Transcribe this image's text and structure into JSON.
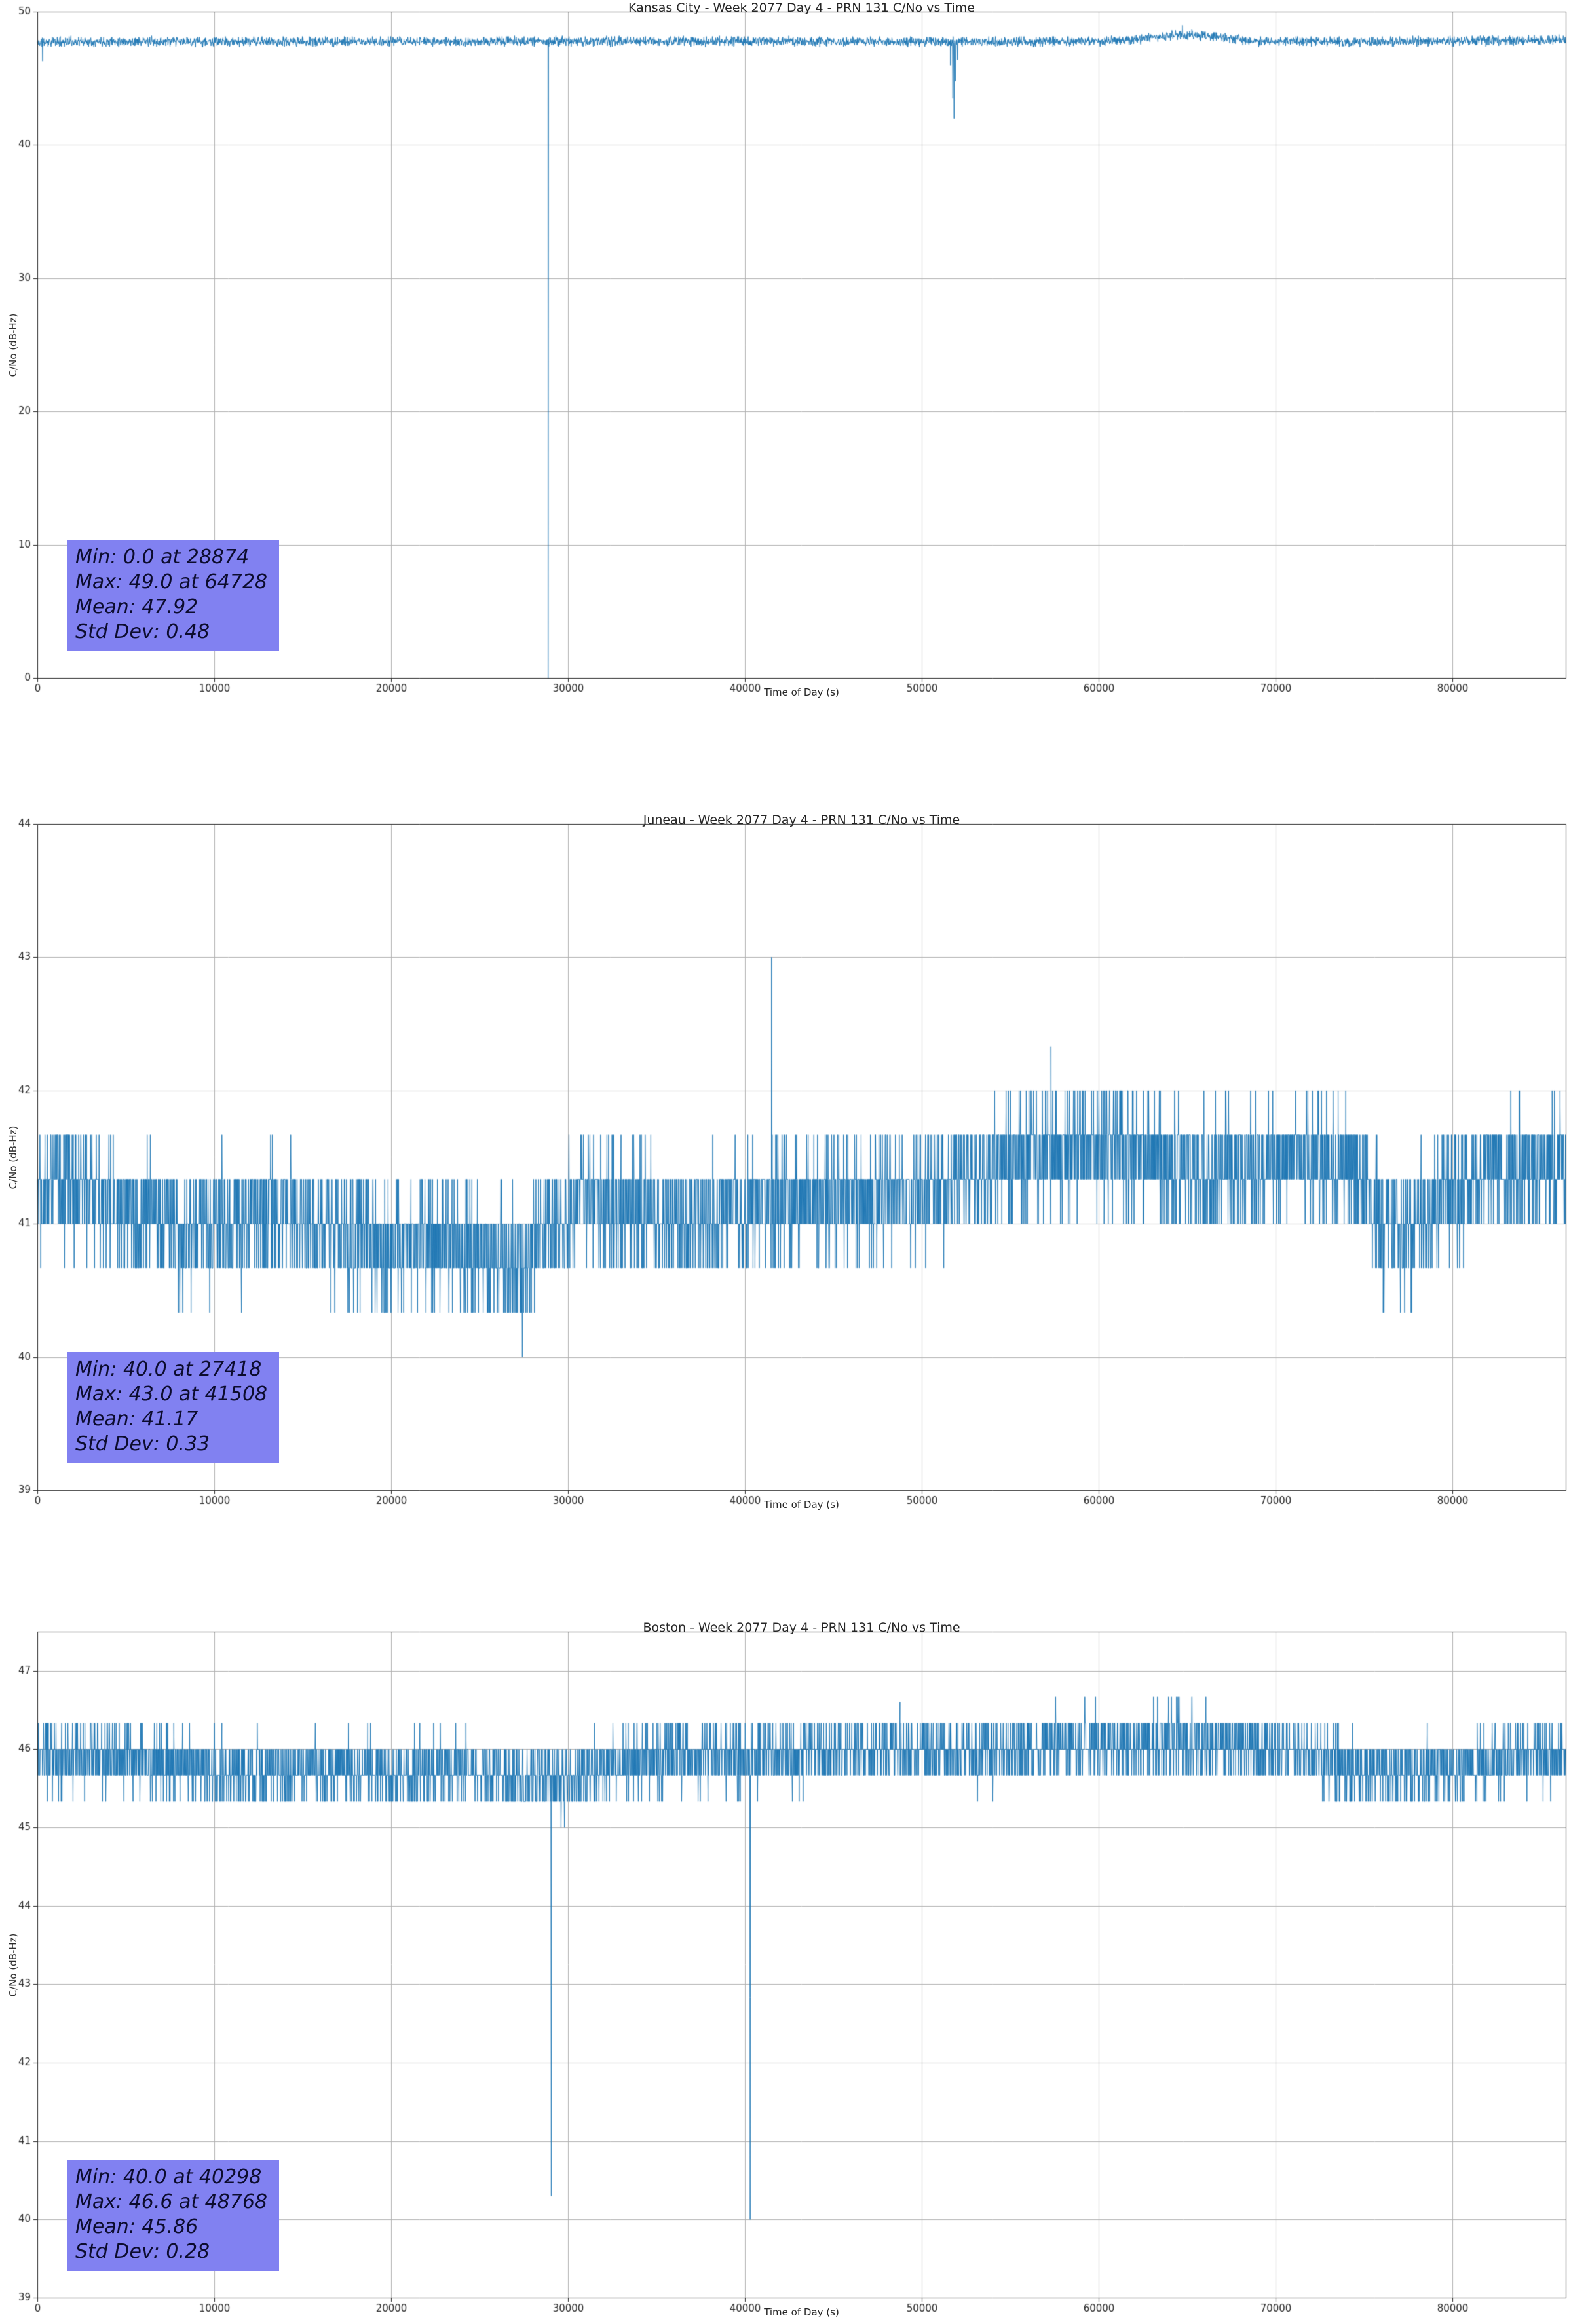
{
  "page": {
    "background": "#ffffff",
    "accent_line_color": "#1f77b4",
    "stats_box_color": "#8181f1",
    "grid_color": "#b0b0b0"
  },
  "chart_data": [
    {
      "type": "line",
      "title": "Kansas City - Week 2077 Day 4 - PRN 131 C/No vs Time",
      "xlabel": "Time of Day (s)",
      "ylabel": "C/No (dB-Hz)",
      "xlim": [
        0,
        86400
      ],
      "ylim": [
        0,
        50
      ],
      "xticks": [
        0,
        10000,
        20000,
        30000,
        40000,
        50000,
        60000,
        70000,
        80000
      ],
      "yticks": [
        0,
        10,
        20,
        30,
        40,
        50
      ],
      "grid": true,
      "legend": null,
      "line_color": "#1f77b4",
      "stats": {
        "min": "Min: 0.0 at 28874",
        "max": "Max: 49.0 at 64728",
        "mean": "Mean: 47.92",
        "std": "Std Dev: 0.48"
      },
      "stats_values": {
        "min": 0.0,
        "min_time": 28874,
        "max": 49.0,
        "max_time": 64728,
        "mean": 47.92,
        "std_dev": 0.48
      },
      "series_model": {
        "seed": 11,
        "n": 5000,
        "quantize": 0.05,
        "noise": 0.22,
        "base_points": [
          [
            0,
            47.7
          ],
          [
            1500,
            47.78
          ],
          [
            12000,
            47.75
          ],
          [
            28000,
            47.78
          ],
          [
            40000,
            47.78
          ],
          [
            50000,
            47.75
          ],
          [
            60000,
            47.8
          ],
          [
            62000,
            47.9
          ],
          [
            64700,
            48.3
          ],
          [
            66500,
            48.15
          ],
          [
            68500,
            47.8
          ],
          [
            76000,
            47.75
          ],
          [
            86400,
            47.9
          ]
        ],
        "events": [
          {
            "t": 300,
            "v": 46.3
          },
          {
            "t": 28874,
            "v": 0.0
          },
          {
            "t": 51620,
            "v": 46.0
          },
          {
            "t": 51750,
            "v": 43.5
          },
          {
            "t": 51820,
            "v": 42.0
          },
          {
            "t": 51900,
            "v": 44.8
          },
          {
            "t": 52020,
            "v": 46.4
          },
          {
            "t": 64728,
            "v": 49.0
          }
        ]
      }
    },
    {
      "type": "line",
      "title": "Juneau - Week 2077 Day 4 - PRN 131 C/No vs Time",
      "xlabel": "Time of Day (s)",
      "ylabel": "C/No (dB-Hz)",
      "xlim": [
        0,
        86400
      ],
      "ylim": [
        39,
        44
      ],
      "xticks": [
        0,
        10000,
        20000,
        30000,
        40000,
        50000,
        60000,
        70000,
        80000
      ],
      "yticks": [
        39,
        40,
        41,
        42,
        43,
        44
      ],
      "grid": true,
      "legend": null,
      "line_color": "#1f77b4",
      "stats": {
        "min": "Min: 40.0 at 27418",
        "max": "Max: 43.0 at 41508",
        "mean": "Mean: 41.17",
        "std": "Std Dev: 0.33"
      },
      "stats_values": {
        "min": 40.0,
        "min_time": 27418,
        "max": 43.0,
        "max_time": 41508,
        "mean": 41.17,
        "std_dev": 0.33
      },
      "series_model": {
        "seed": 22,
        "n": 5400,
        "quantize": 0.33333,
        "noise": 0.28,
        "base_points": [
          [
            0,
            41.35
          ],
          [
            2500,
            41.3
          ],
          [
            5000,
            41.05
          ],
          [
            9000,
            40.95
          ],
          [
            13000,
            41.05
          ],
          [
            16000,
            41.0
          ],
          [
            19000,
            40.85
          ],
          [
            23000,
            40.85
          ],
          [
            26000,
            40.75
          ],
          [
            27418,
            40.7
          ],
          [
            29000,
            41.0
          ],
          [
            31000,
            41.2
          ],
          [
            34000,
            41.1
          ],
          [
            37000,
            41.0
          ],
          [
            39000,
            41.05
          ],
          [
            41508,
            41.2
          ],
          [
            44000,
            41.2
          ],
          [
            47000,
            41.2
          ],
          [
            50000,
            41.25
          ],
          [
            53000,
            41.35
          ],
          [
            55000,
            41.5
          ],
          [
            58000,
            41.6
          ],
          [
            61000,
            41.6
          ],
          [
            63500,
            41.45
          ],
          [
            66000,
            41.35
          ],
          [
            69000,
            41.45
          ],
          [
            72000,
            41.5
          ],
          [
            74500,
            41.4
          ],
          [
            76000,
            41.0
          ],
          [
            77500,
            40.9
          ],
          [
            79500,
            41.15
          ],
          [
            82000,
            41.35
          ],
          [
            86400,
            41.4
          ]
        ],
        "events": [
          {
            "t": 27418,
            "v": 40.0
          },
          {
            "t": 41508,
            "v": 43.0
          },
          {
            "t": 57300,
            "v": 42.33
          }
        ]
      }
    },
    {
      "type": "line",
      "title": "Boston - Week 2077 Day 4 - PRN 131 C/No vs Time",
      "xlabel": "Time of Day (s)",
      "ylabel": "C/No (dB-Hz)",
      "xlim": [
        0,
        86400
      ],
      "ylim": [
        39,
        47.5
      ],
      "xticks": [
        0,
        10000,
        20000,
        30000,
        40000,
        50000,
        60000,
        70000,
        80000
      ],
      "yticks": [
        39,
        40,
        41,
        42,
        43,
        44,
        45,
        46,
        47
      ],
      "grid": true,
      "legend": null,
      "line_color": "#1f77b4",
      "stats": {
        "min": "Min: 40.0 at 40298",
        "max": "Max: 46.6 at 48768",
        "mean": "Mean: 45.86",
        "std": "Std Dev: 0.28"
      },
      "stats_values": {
        "min": 40.0,
        "min_time": 40298,
        "max": 46.6,
        "max_time": 48768,
        "mean": 45.86,
        "std_dev": 0.28
      },
      "series_model": {
        "seed": 33,
        "n": 5400,
        "quantize": 0.33333,
        "noise": 0.26,
        "base_points": [
          [
            0,
            45.85
          ],
          [
            4000,
            45.9
          ],
          [
            8000,
            45.8
          ],
          [
            12000,
            45.7
          ],
          [
            16000,
            45.75
          ],
          [
            20000,
            45.7
          ],
          [
            24000,
            45.75
          ],
          [
            27000,
            45.65
          ],
          [
            30000,
            45.6
          ],
          [
            33000,
            45.8
          ],
          [
            36000,
            45.9
          ],
          [
            40000,
            45.9
          ],
          [
            44000,
            45.95
          ],
          [
            48768,
            46.0
          ],
          [
            52000,
            45.95
          ],
          [
            56000,
            46.0
          ],
          [
            60000,
            46.05
          ],
          [
            64000,
            46.1
          ],
          [
            68000,
            46.05
          ],
          [
            71000,
            45.95
          ],
          [
            74000,
            45.75
          ],
          [
            77000,
            45.7
          ],
          [
            80000,
            45.75
          ],
          [
            83000,
            45.9
          ],
          [
            86400,
            45.95
          ]
        ],
        "events": [
          {
            "t": 29050,
            "v": 40.3
          },
          {
            "t": 40298,
            "v": 40.0
          },
          {
            "t": 48768,
            "v": 46.6
          }
        ]
      }
    }
  ]
}
